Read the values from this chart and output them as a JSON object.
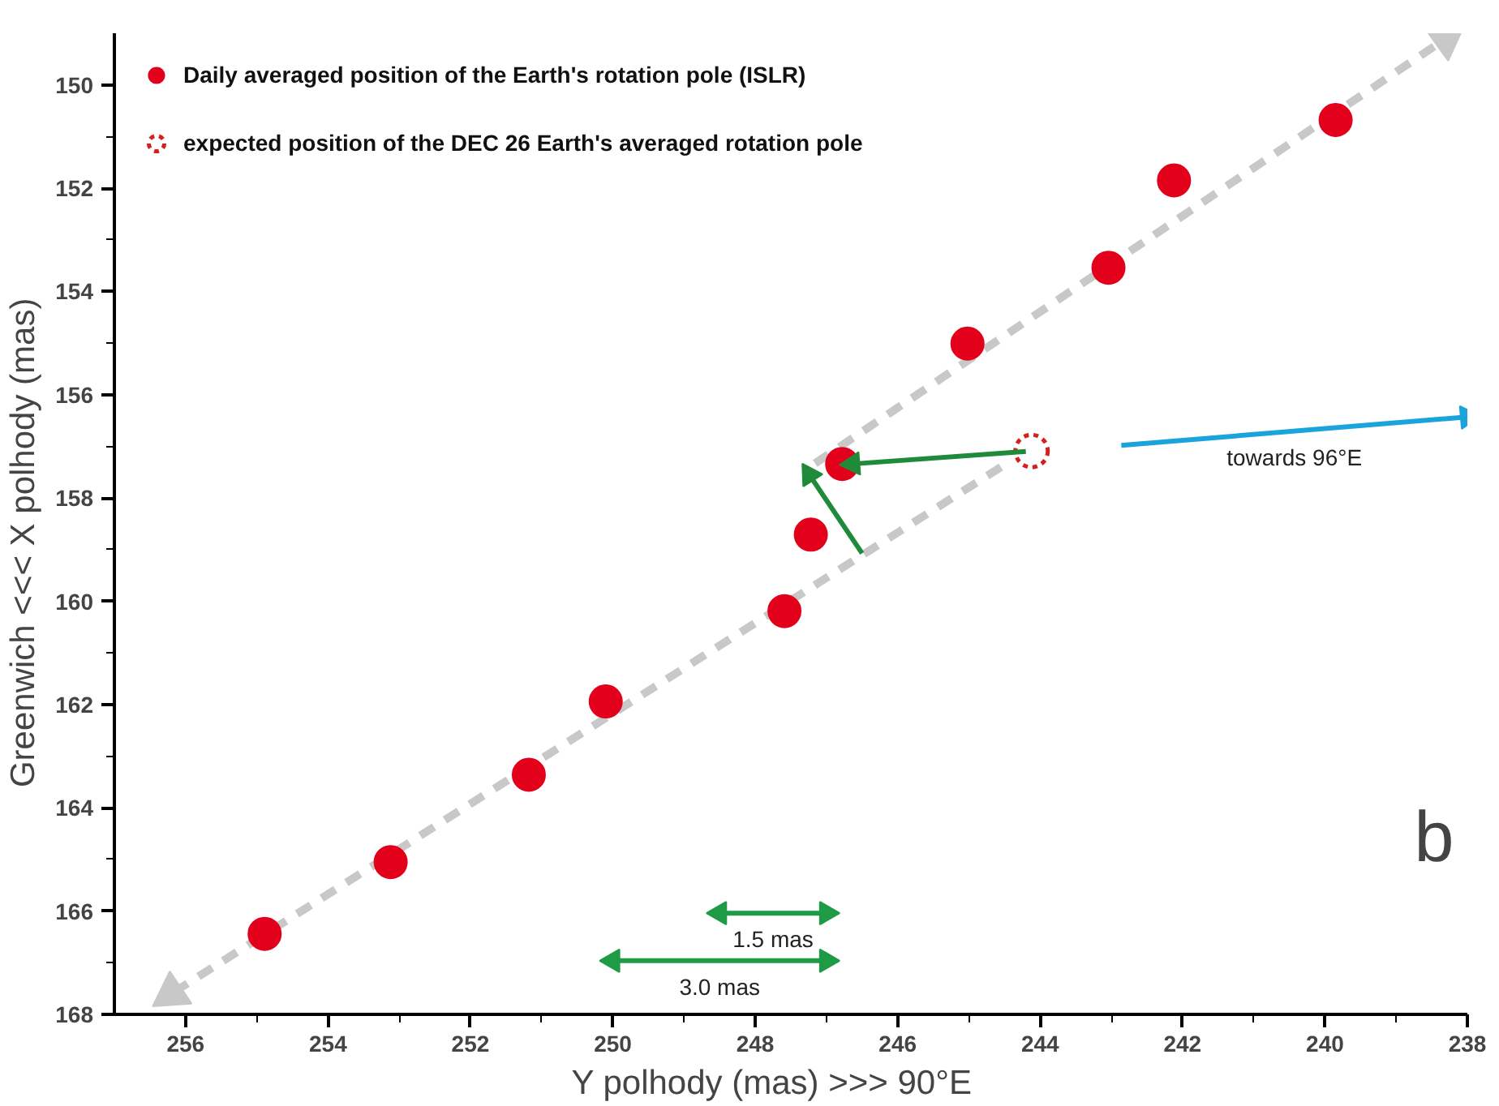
{
  "chart_data": {
    "type": "scatter",
    "xlabel": "Y polhody (mas)     >>> 90°E",
    "ylabel": "Greenwich <<<     X polhody (mas)",
    "xlim": [
      257,
      238
    ],
    "ylim": [
      168,
      149
    ],
    "xticks": [
      256,
      254,
      252,
      250,
      248,
      246,
      244,
      242,
      240,
      238
    ],
    "yticks": [
      150,
      152,
      154,
      156,
      158,
      160,
      162,
      164,
      166,
      168
    ],
    "grid": false,
    "legend": "top left",
    "marker": "circle",
    "series": [
      {
        "type": "line",
        "marker": "triangle",
        "color": "#c8c8c8",
        "line_style": "dashed",
        "x": [
          244.55,
          256.2
        ],
        "values": [
          157.4,
          167.6
        ]
      },
      {
        "type": "line",
        "marker": "triangle",
        "color": "#c8c8c8",
        "line_style": "dashed",
        "x": [
          247.16,
          238.3
        ],
        "values": [
          157.33,
          149.1
        ]
      },
      {
        "name": "Daily averaged position of the Earth's rotation pole (ISLR)",
        "color": "#e3001b",
        "x": [
          254.89,
          253.12,
          251.18,
          250.1,
          247.59,
          247.22,
          246.78,
          245.02,
          243.04,
          242.12,
          239.85
        ],
        "values": [
          166.44,
          165.05,
          163.36,
          161.94,
          160.19,
          158.71,
          157.34,
          155.01,
          153.54,
          151.85,
          150.68
        ]
      },
      {
        "name": "expected position of the DEC 26 Earth's averaged rotation pole",
        "color": "#d42020",
        "line_style": "dotted",
        "x": [
          244.12
        ],
        "values": [
          157.09
        ]
      },
      {
        "type": "line",
        "marker": "triangle",
        "color": "#1f8a3a",
        "x": [
          244.2,
          246.63
        ],
        "values": [
          157.1,
          157.34
        ]
      },
      {
        "type": "line",
        "marker": "triangle",
        "color": "#1f8a3a",
        "x": [
          246.5,
          247.24
        ],
        "values": [
          159.07,
          157.55
        ]
      },
      {
        "type": "line",
        "marker": "triangle",
        "name": "towards 96°E",
        "color": "#1ba3dc",
        "x": [
          242.86,
          238.0
        ],
        "values": [
          156.98,
          156.43
        ]
      },
      {
        "type": "line",
        "marker": "triangle",
        "name": "1.5 mas",
        "color": "#1f9a45",
        "x": [
          248.5,
          247.75,
          247.0
        ],
        "values": [
          166.04,
          166.04,
          166.04
        ]
      },
      {
        "type": "line",
        "marker": "triangle",
        "name": "3.0 mas",
        "color": "#1f9a45",
        "x": [
          250.0,
          248.5,
          247.0
        ],
        "values": [
          166.96,
          166.96,
          166.96
        ]
      }
    ],
    "annotations": [
      "b"
    ]
  }
}
